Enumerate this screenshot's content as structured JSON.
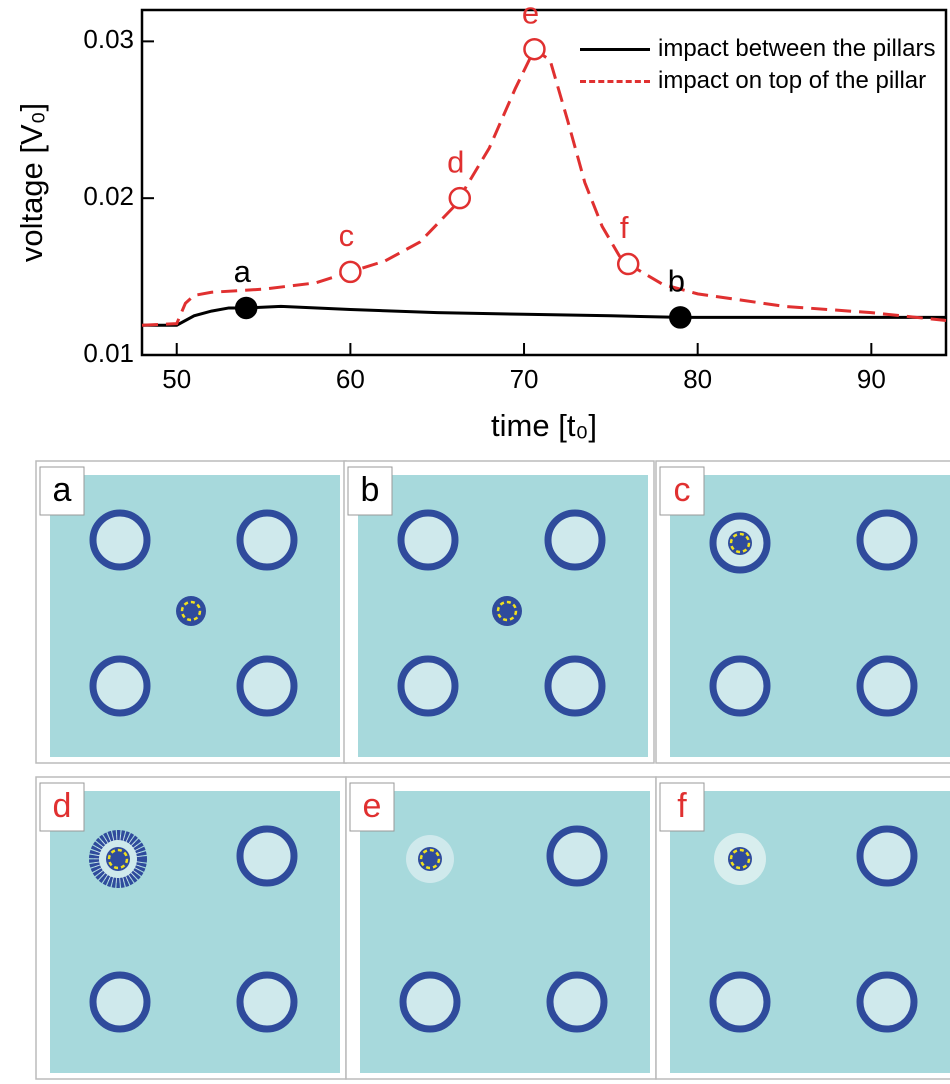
{
  "chart_data": {
    "type": "line",
    "xlabel": "time [t₀]",
    "ylabel": "voltage [V₀]",
    "xlim": [
      48,
      94.3
    ],
    "ylim": [
      0.01,
      0.032
    ],
    "xticks": [
      50,
      60,
      70,
      80,
      90
    ],
    "yticks": [
      0.01,
      0.02,
      0.03
    ],
    "series": [
      {
        "name": "impact between the pillars",
        "color": "#000000",
        "dash": false,
        "x": [
          48,
          50,
          51,
          52,
          53,
          54,
          56,
          60,
          65,
          70,
          75,
          79,
          85,
          94.3
        ],
        "values": [
          0.0119,
          0.0119,
          0.0125,
          0.0128,
          0.013,
          0.013,
          0.0131,
          0.0129,
          0.0127,
          0.0126,
          0.0125,
          0.0124,
          0.0124,
          0.0124
        ]
      },
      {
        "name": "impact on top of the pillar",
        "color": "#e03030",
        "dash": true,
        "x": [
          48,
          50,
          50.5,
          51,
          52,
          55,
          58,
          60,
          62,
          64,
          66,
          68,
          69.5,
          70.6,
          71.5,
          72.5,
          73.5,
          74.5,
          75.5,
          76,
          78,
          80,
          85,
          90,
          94.3
        ],
        "values": [
          0.0119,
          0.012,
          0.0133,
          0.0138,
          0.014,
          0.0142,
          0.0146,
          0.0153,
          0.016,
          0.0172,
          0.0195,
          0.0232,
          0.027,
          0.0295,
          0.0288,
          0.025,
          0.021,
          0.0182,
          0.0163,
          0.0158,
          0.0145,
          0.0139,
          0.0131,
          0.0127,
          0.0122
        ]
      }
    ],
    "points": [
      {
        "label": "a",
        "x": 54,
        "y": 0.013,
        "color": "#000000",
        "filled": true
      },
      {
        "label": "b",
        "x": 79,
        "y": 0.0124,
        "color": "#000000",
        "filled": true
      },
      {
        "label": "c",
        "x": 60,
        "y": 0.0153,
        "color": "#e03030",
        "filled": false
      },
      {
        "label": "d",
        "x": 66.3,
        "y": 0.02,
        "color": "#e03030",
        "filled": false
      },
      {
        "label": "e",
        "x": 70.6,
        "y": 0.0295,
        "color": "#e03030",
        "filled": false
      },
      {
        "label": "f",
        "x": 76,
        "y": 0.0158,
        "color": "#e03030",
        "filled": false
      }
    ]
  },
  "panels": [
    {
      "label": "a",
      "color": "#000000"
    },
    {
      "label": "b",
      "color": "#000000"
    },
    {
      "label": "c",
      "color": "#e03030"
    },
    {
      "label": "d",
      "color": "#e03030"
    },
    {
      "label": "e",
      "color": "#e03030"
    },
    {
      "label": "f",
      "color": "#e03030"
    }
  ]
}
